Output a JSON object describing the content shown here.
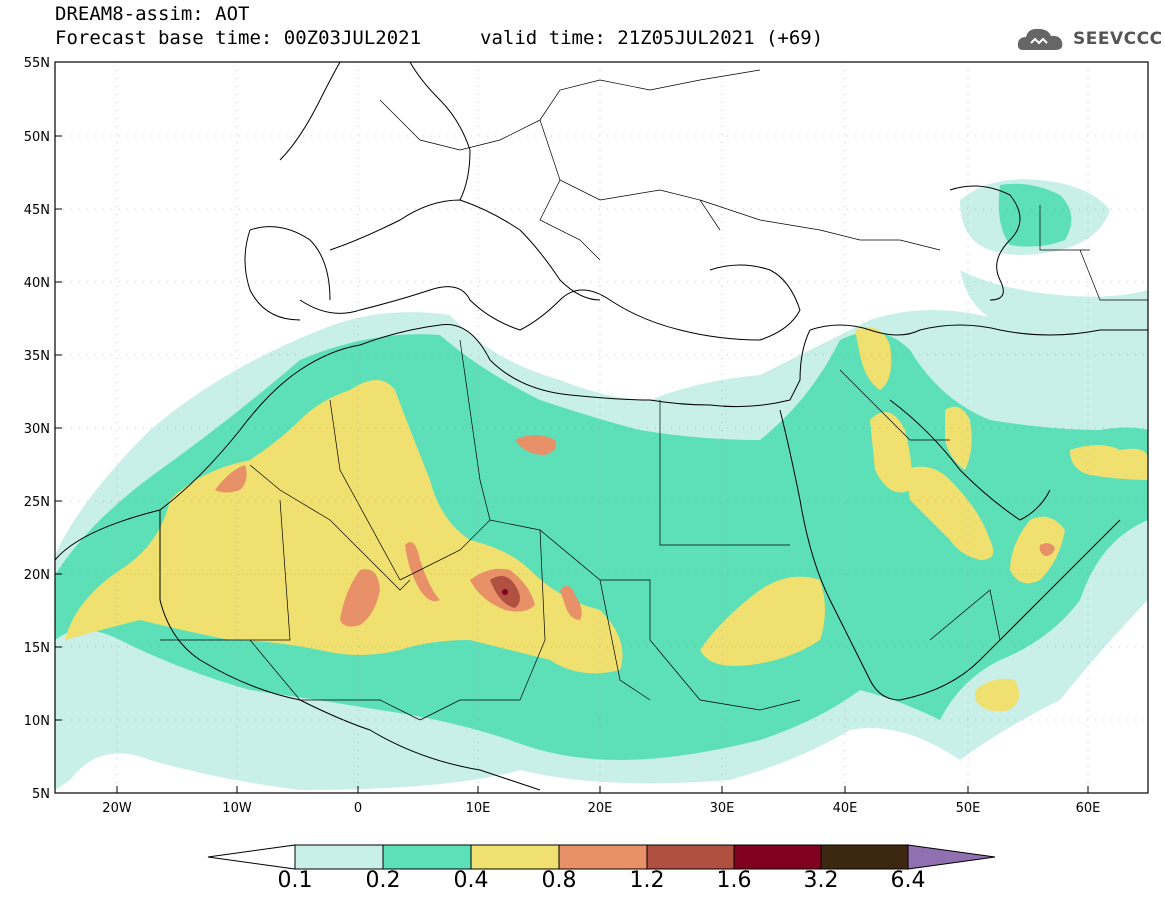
{
  "title": {
    "line1": "DREAM8-assim: AOT",
    "line2": "Forecast base time: 00Z03JUL2021",
    "valid": "valid time: 21Z05JUL2021 (+69)"
  },
  "logo": {
    "text": "SEEVCCC",
    "icon": "cloud-icon"
  },
  "map": {
    "lat_ticks": [
      "55N",
      "50N",
      "45N",
      "40N",
      "35N",
      "30N",
      "25N",
      "20N",
      "15N",
      "10N",
      "5N"
    ],
    "lon_ticks": [
      "20W",
      "10W",
      "0",
      "10E",
      "20E",
      "30E",
      "40E",
      "50E",
      "60E"
    ],
    "colors": {
      "background": "#ffffff",
      "level1": "#c8f0e8",
      "level2": "#5ddfb8",
      "level3": "#f0e070",
      "level4": "#e89068",
      "level5": "#b05040",
      "level6": "#800020"
    }
  },
  "colorbar": {
    "labels": [
      "0.1",
      "0.2",
      "0.4",
      "0.8",
      "1.2",
      "1.6",
      "3.2",
      "6.4"
    ],
    "colors": [
      "#c8f0e8",
      "#5ddfb8",
      "#f0e070",
      "#e89068",
      "#b05040",
      "#800020",
      "#3c2810"
    ],
    "under_color": "#ffffff",
    "over_color": "#9070b0"
  }
}
